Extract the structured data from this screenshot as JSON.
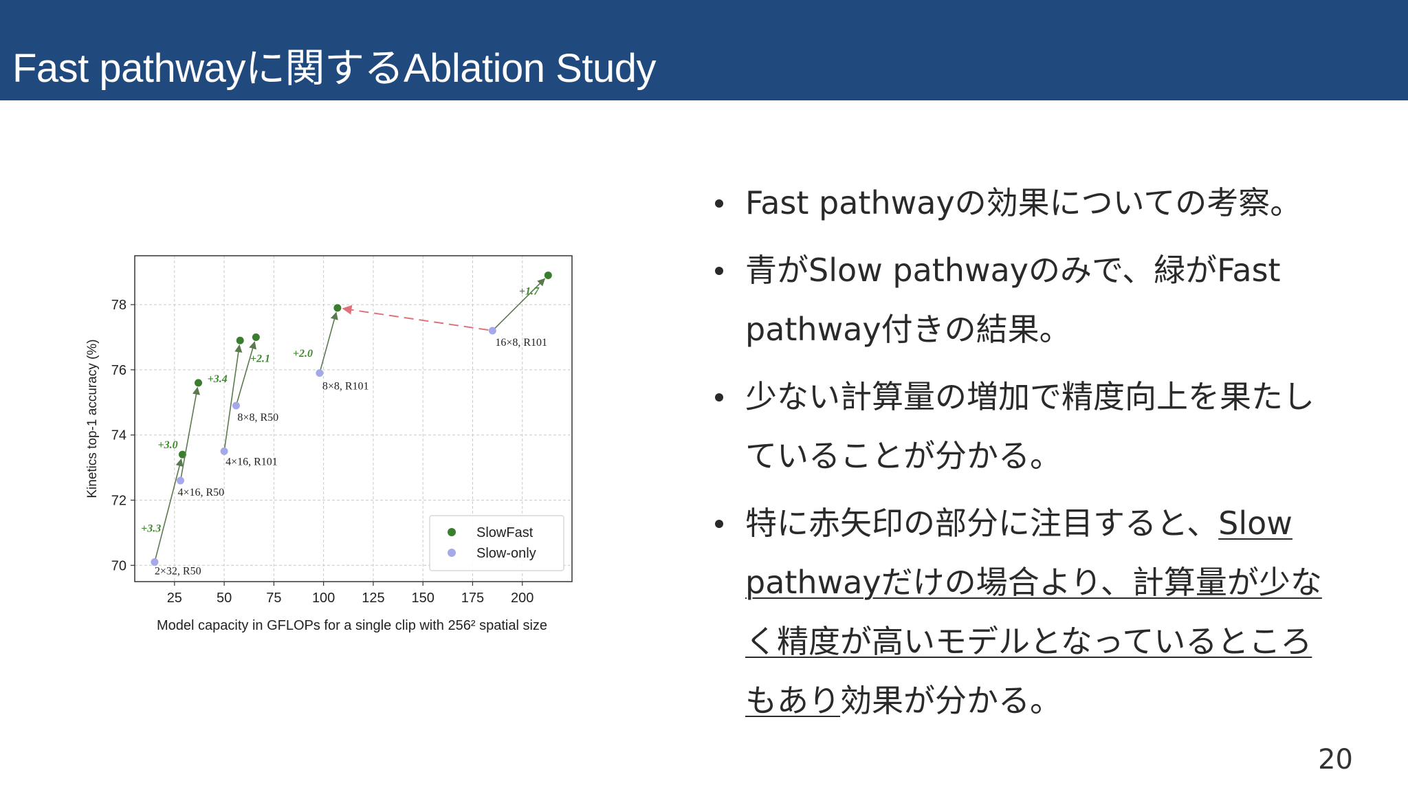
{
  "slide": {
    "title": "Fast pathwayに関するAblation Study",
    "page_number": "20",
    "bullets": [
      {
        "text": "Fast pathwayの効果についての考察。"
      },
      {
        "text": "青がSlow pathwayのみで、緑がFast pathway付きの結果。"
      },
      {
        "text": "少ない計算量の増加で精度向上を果たしていることが分かる。"
      },
      {
        "text": "特に赤矢印の部分に注目すると、",
        "underlined": "Slow pathwayだけの場合より、計算量が少なく精度が高いモデルとなっているところもあり",
        "tail": "効果が分かる。"
      }
    ]
  },
  "chart_data": {
    "type": "scatter",
    "xlabel": "Model capacity in GFLOPs for a single clip with 256² spatial size",
    "ylabel": "Kinetics top-1 accuracy (%)",
    "xlim": [
      5,
      225
    ],
    "ylim": [
      69.5,
      79.5
    ],
    "xticks": [
      25,
      50,
      75,
      100,
      125,
      150,
      175,
      200
    ],
    "yticks": [
      70,
      72,
      74,
      76,
      78
    ],
    "grid": true,
    "legend": {
      "position": "bottom-right",
      "entries": [
        "SlowFast",
        "Slow-only"
      ]
    },
    "colors": {
      "slowfast": "#3b7d2e",
      "slow_only": "#a5a9ea",
      "arrow": "#5a7a4e",
      "gain_label": "#3f8a2e",
      "red_arrow": "#e0707a"
    },
    "pairs": [
      {
        "label": "2×32, R50",
        "slow": [
          15,
          70.1
        ],
        "fast": [
          29,
          73.4
        ],
        "gain": "+3.3"
      },
      {
        "label": "4×16, R50",
        "slow": [
          28,
          72.6
        ],
        "fast": [
          37,
          75.6
        ],
        "gain": "+3.0"
      },
      {
        "label": "4×16, R101",
        "slow": [
          50,
          73.5
        ],
        "fast": [
          58,
          76.9
        ],
        "gain": "+3.4"
      },
      {
        "label": "8×8, R50",
        "slow": [
          56,
          74.9
        ],
        "fast": [
          66,
          77.0
        ],
        "gain": "+2.1"
      },
      {
        "label": "8×8, R101",
        "slow": [
          98,
          75.9
        ],
        "fast": [
          107,
          77.9
        ],
        "gain": "+2.0"
      },
      {
        "label": "16×8, R101",
        "slow": [
          185,
          77.2
        ],
        "fast": [
          213,
          78.9
        ],
        "gain": "+1.7"
      }
    ],
    "highlight_arrow": {
      "from": [
        185,
        77.2
      ],
      "to": [
        107,
        77.9
      ]
    }
  }
}
